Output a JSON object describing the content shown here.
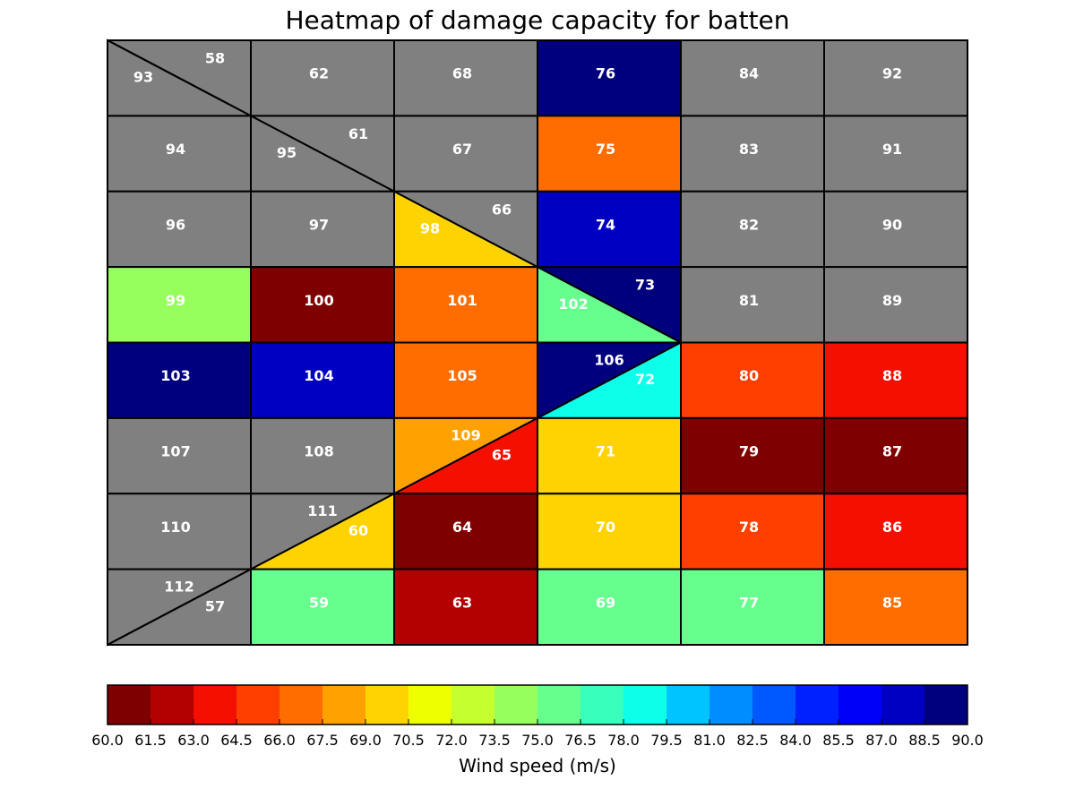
{
  "chart_data": {
    "type": "heatmap",
    "title": "Heatmap of damage capacity for batten",
    "colorbar": {
      "label": "Wind speed (m/s)",
      "min": 60.0,
      "max": 90.0,
      "step": 1.5,
      "ticks": [
        "60.0",
        "61.5",
        "63.0",
        "64.5",
        "66.0",
        "67.5",
        "69.0",
        "70.5",
        "72.0",
        "73.5",
        "75.0",
        "76.5",
        "78.0",
        "79.5",
        "81.0",
        "82.5",
        "84.0",
        "85.5",
        "87.0",
        "88.5",
        "90.0"
      ],
      "colors": [
        "#7f0000",
        "#b30000",
        "#f50f00",
        "#ff3f00",
        "#ff6d00",
        "#ffa100",
        "#ffd300",
        "#eeff00",
        "#c6ff2e",
        "#96ff5e",
        "#66ff8e",
        "#38ffbc",
        "#0dffea",
        "#00c4ff",
        "#008dff",
        "#0059ff",
        "#0021ff",
        "#0000fa",
        "#0000c2",
        "#00007f"
      ]
    },
    "grid": {
      "rows": 8,
      "cols": 6
    },
    "no_data_color": "#808080",
    "cells": [
      {
        "row": 0,
        "col": 0,
        "split": "down",
        "lower": {
          "label": "93",
          "value": null
        },
        "upper": {
          "label": "58",
          "value": null
        }
      },
      {
        "row": 0,
        "col": 1,
        "label": "62",
        "value": null
      },
      {
        "row": 0,
        "col": 2,
        "label": "68",
        "value": null
      },
      {
        "row": 0,
        "col": 3,
        "label": "76",
        "value": 89.5
      },
      {
        "row": 0,
        "col": 4,
        "label": "84",
        "value": null
      },
      {
        "row": 0,
        "col": 5,
        "label": "92",
        "value": null
      },
      {
        "row": 1,
        "col": 0,
        "label": "94",
        "value": null
      },
      {
        "row": 1,
        "col": 1,
        "split": "down",
        "lower": {
          "label": "95",
          "value": null
        },
        "upper": {
          "label": "61",
          "value": null
        }
      },
      {
        "row": 1,
        "col": 2,
        "label": "67",
        "value": null
      },
      {
        "row": 1,
        "col": 3,
        "label": "75",
        "value": 66.5
      },
      {
        "row": 1,
        "col": 4,
        "label": "83",
        "value": null
      },
      {
        "row": 1,
        "col": 5,
        "label": "91",
        "value": null
      },
      {
        "row": 2,
        "col": 0,
        "label": "96",
        "value": null
      },
      {
        "row": 2,
        "col": 1,
        "label": "97",
        "value": null
      },
      {
        "row": 2,
        "col": 2,
        "split": "down",
        "lower": {
          "label": "98",
          "value": 69.5
        },
        "upper": {
          "label": "66",
          "value": null
        }
      },
      {
        "row": 2,
        "col": 3,
        "label": "74",
        "value": 88.0
      },
      {
        "row": 2,
        "col": 4,
        "label": "82",
        "value": null
      },
      {
        "row": 2,
        "col": 5,
        "label": "90",
        "value": null
      },
      {
        "row": 3,
        "col": 0,
        "label": "99",
        "value": 74.0
      },
      {
        "row": 3,
        "col": 1,
        "label": "100",
        "value": 60.5
      },
      {
        "row": 3,
        "col": 2,
        "label": "101",
        "value": 66.5
      },
      {
        "row": 3,
        "col": 3,
        "split": "down",
        "lower": {
          "label": "102",
          "value": 75.5
        },
        "upper": {
          "label": "73",
          "value": 89.5
        }
      },
      {
        "row": 3,
        "col": 4,
        "label": "81",
        "value": null
      },
      {
        "row": 3,
        "col": 5,
        "label": "89",
        "value": null
      },
      {
        "row": 4,
        "col": 0,
        "label": "103",
        "value": 89.5
      },
      {
        "row": 4,
        "col": 1,
        "label": "104",
        "value": 88.0
      },
      {
        "row": 4,
        "col": 2,
        "label": "105",
        "value": 66.5
      },
      {
        "row": 4,
        "col": 3,
        "split": "up",
        "upper": {
          "label": "106",
          "value": 89.5
        },
        "lower": {
          "label": "72",
          "value": 79.0
        }
      },
      {
        "row": 4,
        "col": 4,
        "label": "80",
        "value": 65.0
      },
      {
        "row": 4,
        "col": 5,
        "label": "88",
        "value": 63.5
      },
      {
        "row": 5,
        "col": 0,
        "label": "107",
        "value": null
      },
      {
        "row": 5,
        "col": 1,
        "label": "108",
        "value": null
      },
      {
        "row": 5,
        "col": 2,
        "split": "up",
        "upper": {
          "label": "109",
          "value": 68.0
        },
        "lower": {
          "label": "65",
          "value": 63.5
        }
      },
      {
        "row": 5,
        "col": 3,
        "label": "71",
        "value": 69.5
      },
      {
        "row": 5,
        "col": 4,
        "label": "79",
        "value": 60.5
      },
      {
        "row": 5,
        "col": 5,
        "label": "87",
        "value": 60.5
      },
      {
        "row": 6,
        "col": 0,
        "label": "110",
        "value": null
      },
      {
        "row": 6,
        "col": 1,
        "split": "up",
        "upper": {
          "label": "111",
          "value": null
        },
        "lower": {
          "label": "60",
          "value": 69.5
        }
      },
      {
        "row": 6,
        "col": 2,
        "label": "64",
        "value": 60.5
      },
      {
        "row": 6,
        "col": 3,
        "label": "70",
        "value": 69.5
      },
      {
        "row": 6,
        "col": 4,
        "label": "78",
        "value": 65.0
      },
      {
        "row": 6,
        "col": 5,
        "label": "86",
        "value": 63.5
      },
      {
        "row": 7,
        "col": 0,
        "split": "up",
        "upper": {
          "label": "112",
          "value": null
        },
        "lower": {
          "label": "57",
          "value": null
        }
      },
      {
        "row": 7,
        "col": 1,
        "label": "59",
        "value": 75.5
      },
      {
        "row": 7,
        "col": 2,
        "label": "63",
        "value": 62.0
      },
      {
        "row": 7,
        "col": 3,
        "label": "69",
        "value": 75.5
      },
      {
        "row": 7,
        "col": 4,
        "label": "77",
        "value": 75.5
      },
      {
        "row": 7,
        "col": 5,
        "label": "85",
        "value": 66.5
      }
    ]
  }
}
